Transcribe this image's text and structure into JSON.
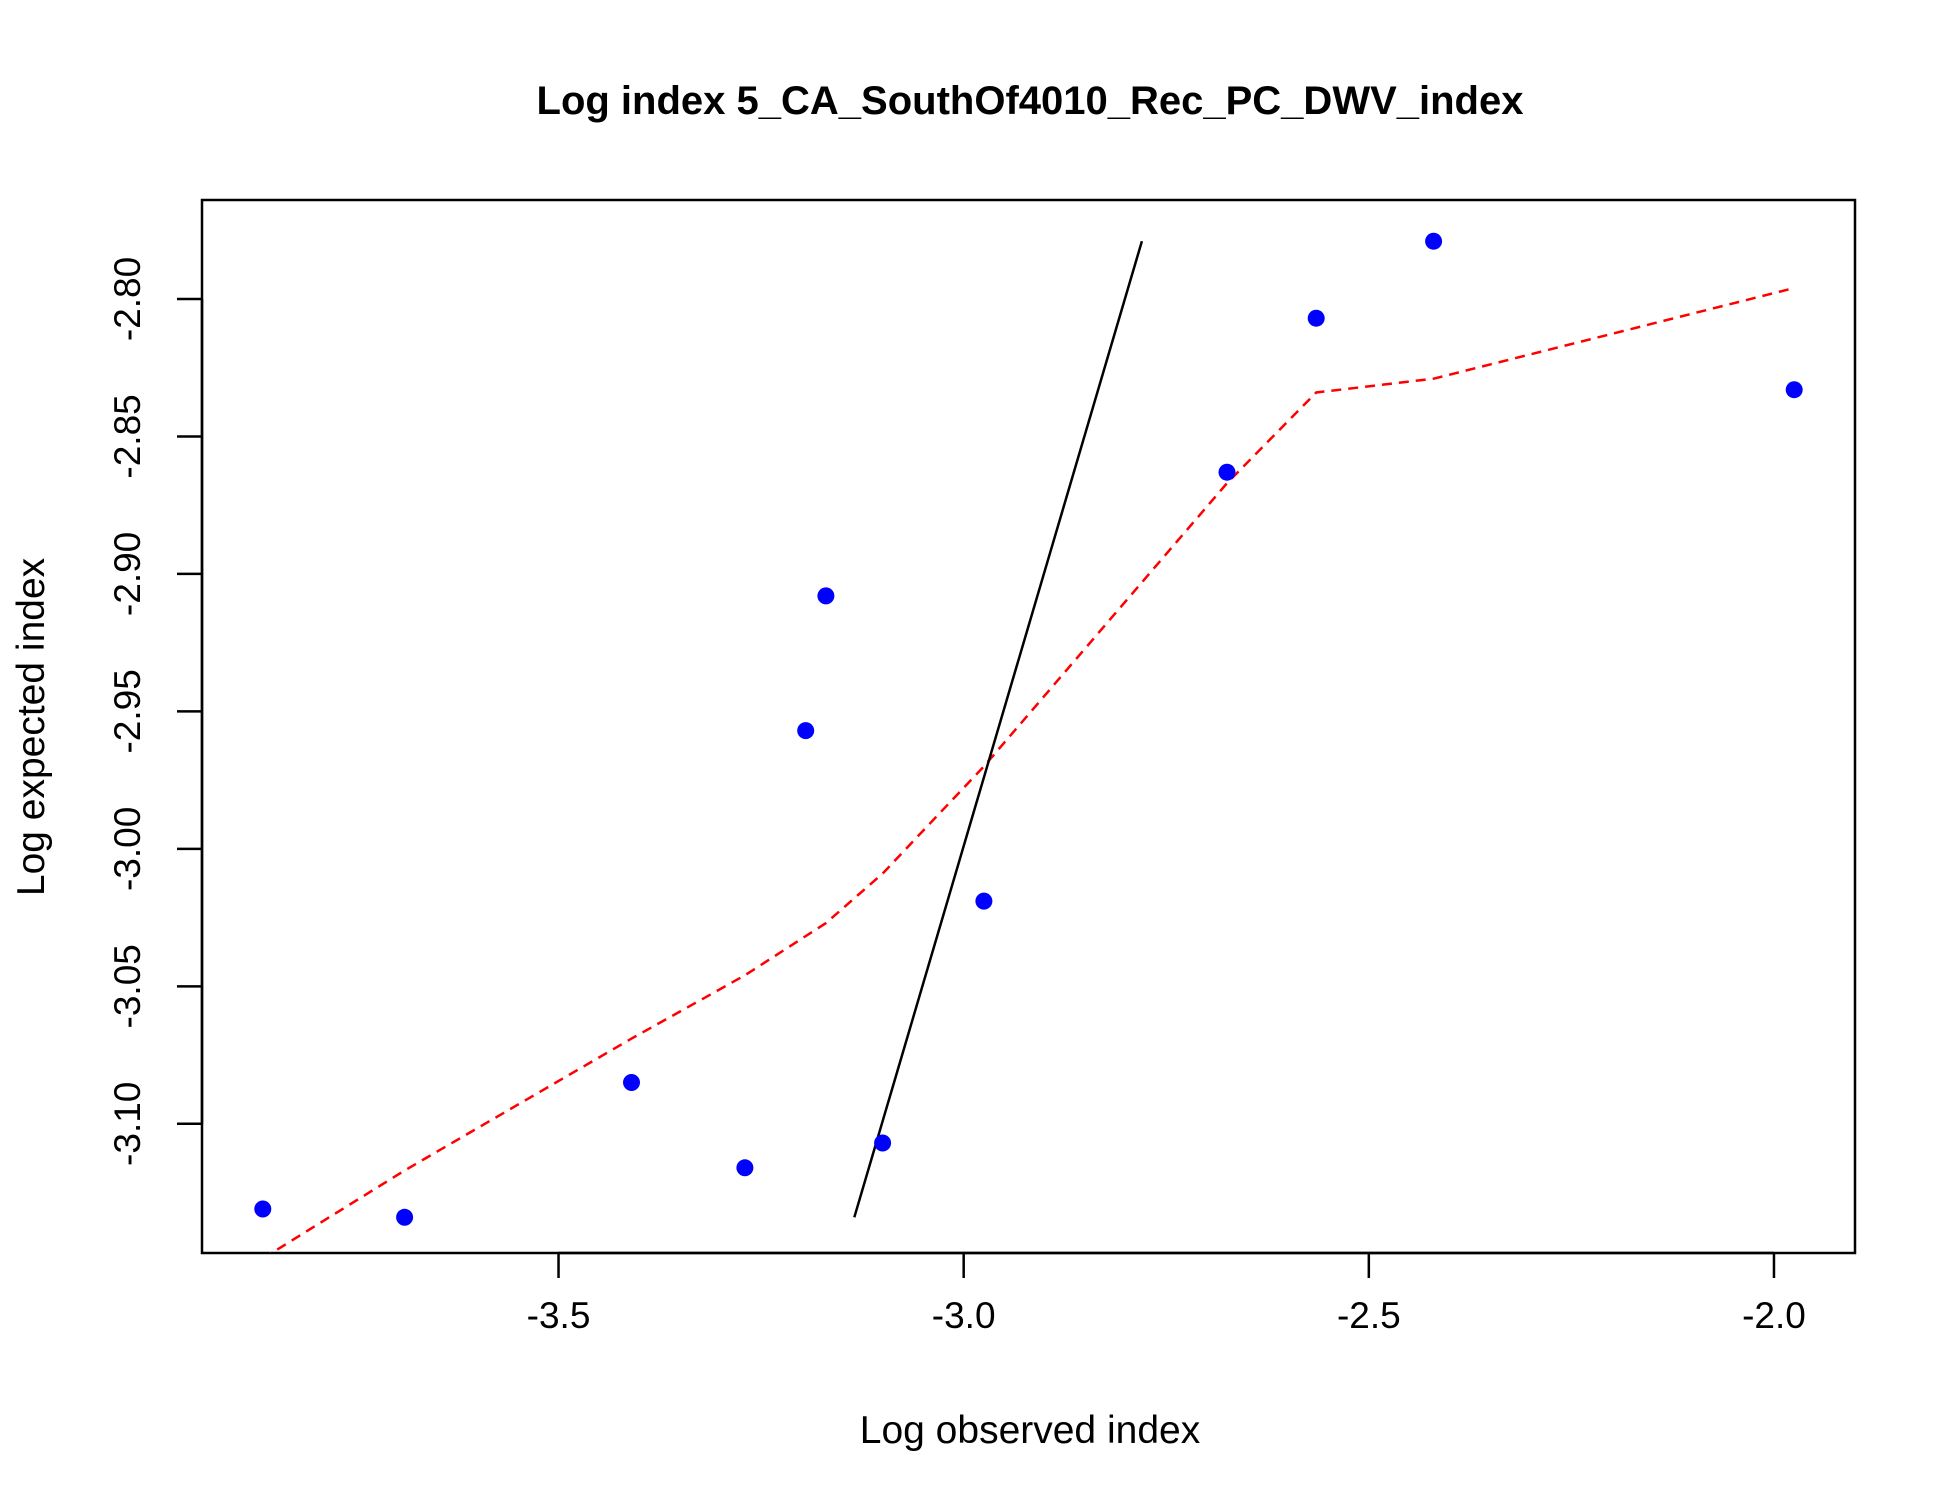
{
  "chart_data": {
    "type": "scatter",
    "title": "Log index 5_CA_SouthOf4010_Rec_PC_DWV_index",
    "xlabel": "Log observed index",
    "ylabel": "Log expected index",
    "xlim": [
      -3.94,
      -1.9
    ],
    "ylim": [
      -3.147,
      -2.764
    ],
    "x_ticks": [
      -3.5,
      -3.0,
      -2.5,
      -2.0
    ],
    "x_tick_labels": [
      "-3.5",
      "-3.0",
      "-2.5",
      "-2.0"
    ],
    "y_ticks": [
      -3.1,
      -3.05,
      -3.0,
      -2.95,
      -2.9,
      -2.85,
      -2.8
    ],
    "y_tick_labels": [
      "-3.10",
      "-3.05",
      "-3.00",
      "-2.95",
      "-2.90",
      "-2.85",
      "-2.80"
    ],
    "grid": false,
    "colors": {
      "points": "#0000ff",
      "smoother": "#ff0000",
      "reference_line": "#000000"
    },
    "series": [
      {
        "kind": "points",
        "x": [
          -3.865,
          -3.69,
          -3.41,
          -3.27,
          -3.195,
          -3.17,
          -3.1,
          -2.975,
          -2.675,
          -2.565,
          -2.42,
          -1.975
        ],
        "y": [
          -3.131,
          -3.134,
          -3.085,
          -3.116,
          -2.957,
          -2.908,
          -3.107,
          -3.019,
          -2.863,
          -2.807,
          -2.779,
          -2.833
        ]
      },
      {
        "kind": "smoother",
        "x": [
          -3.865,
          -3.69,
          -3.41,
          -3.27,
          -3.17,
          -3.1,
          -2.975,
          -2.675,
          -2.565,
          -2.42,
          -1.975
        ],
        "y": [
          -3.149,
          -3.117,
          -3.069,
          -3.046,
          -3.027,
          -3.009,
          -2.97,
          -2.867,
          -2.834,
          -2.829,
          -2.796
        ]
      },
      {
        "kind": "reference_line",
        "x": [
          -3.135,
          -2.78
        ],
        "y": [
          -3.134,
          -2.779
        ]
      }
    ]
  }
}
